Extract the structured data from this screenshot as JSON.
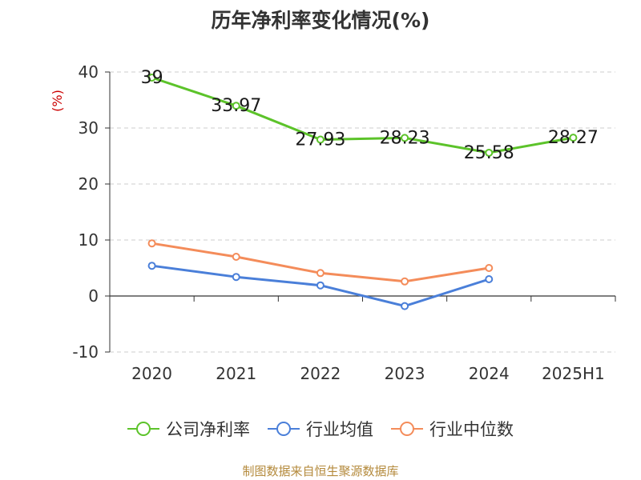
{
  "chart_data": {
    "type": "line",
    "title": "历年净利率变化情况(%)",
    "ylabel": "(%)",
    "xlabel": "",
    "categories": [
      "2020",
      "2021",
      "2022",
      "2023",
      "2024",
      "2025H1"
    ],
    "ylim": [
      -10,
      40
    ],
    "yticks": [
      -10,
      0,
      10,
      20,
      30,
      40
    ],
    "grid": true,
    "legend_position": "bottom",
    "series": [
      {
        "name": "公司净利率",
        "color": "#5cc32a",
        "values": [
          39,
          33.97,
          27.93,
          28.23,
          25.58,
          28.27
        ],
        "labels": [
          "39",
          "33.97",
          "27.93",
          "28.23",
          "25.58",
          "28.27"
        ]
      },
      {
        "name": "行业均值",
        "color": "#4a7fd9",
        "values": [
          5.4,
          3.4,
          1.9,
          -1.8,
          3.0,
          null
        ]
      },
      {
        "name": "行业中位数",
        "color": "#f48c5a",
        "values": [
          9.4,
          7.0,
          4.1,
          2.6,
          5.0,
          null
        ]
      }
    ]
  },
  "source": "制图数据来自恒生聚源数据库"
}
